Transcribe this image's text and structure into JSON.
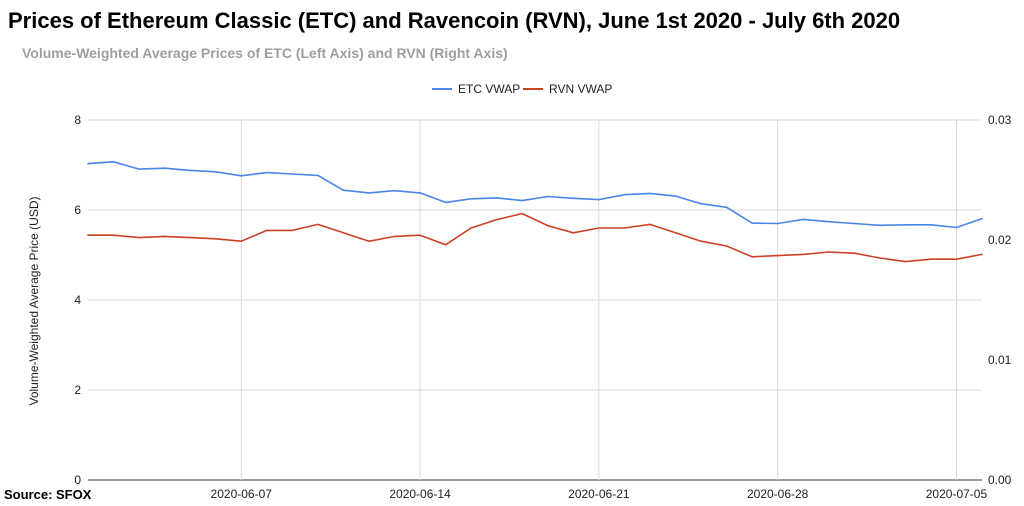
{
  "title": "Prices of Ethereum Classic (ETC) and Ravencoin (RVN), June 1st 2020 - July 6th 2020",
  "subtitle": "Volume-Weighted Average Prices of ETC (Left Axis) and RVN (Right Axis)",
  "source": "Source: SFOX",
  "colors": {
    "etc": "#4a86e8",
    "rvn": "#cc4125",
    "grid": "#d9d9d9"
  },
  "chart_data": {
    "type": "line",
    "ylabel": "Volume-Weighted Average Price (USD)",
    "legend_position": "top-center",
    "grid": true,
    "x_start": "2020-06-01",
    "x_end": "2020-07-06",
    "x": [
      "2020-06-01",
      "2020-06-02",
      "2020-06-03",
      "2020-06-04",
      "2020-06-05",
      "2020-06-06",
      "2020-06-07",
      "2020-06-08",
      "2020-06-09",
      "2020-06-10",
      "2020-06-11",
      "2020-06-12",
      "2020-06-13",
      "2020-06-14",
      "2020-06-15",
      "2020-06-16",
      "2020-06-17",
      "2020-06-18",
      "2020-06-19",
      "2020-06-20",
      "2020-06-21",
      "2020-06-22",
      "2020-06-23",
      "2020-06-24",
      "2020-06-25",
      "2020-06-26",
      "2020-06-27",
      "2020-06-28",
      "2020-06-29",
      "2020-06-30",
      "2020-07-01",
      "2020-07-02",
      "2020-07-03",
      "2020-07-04",
      "2020-07-05",
      "2020-07-06"
    ],
    "x_tick_labels": [
      "2020-06-07",
      "2020-06-14",
      "2020-06-21",
      "2020-06-28",
      "2020-07-05"
    ],
    "left_axis": {
      "ylim": [
        0,
        8
      ],
      "ticks": [
        "0",
        "2",
        "4",
        "6",
        "8"
      ]
    },
    "right_axis": {
      "ylim": [
        0,
        0.03
      ],
      "ticks": [
        "0.00",
        "0.01",
        "0.02",
        "0.03"
      ]
    },
    "series": [
      {
        "name": "ETC VWAP",
        "axis": "left",
        "values": [
          7.03,
          7.07,
          6.91,
          6.93,
          6.88,
          6.85,
          6.76,
          6.83,
          6.8,
          6.77,
          6.44,
          6.38,
          6.43,
          6.38,
          6.17,
          6.25,
          6.27,
          6.21,
          6.3,
          6.26,
          6.23,
          6.34,
          6.37,
          6.31,
          6.14,
          6.06,
          5.71,
          5.7,
          5.79,
          5.74,
          5.7,
          5.66,
          5.67,
          5.67,
          5.61,
          5.81
        ]
      },
      {
        "name": "RVN VWAP",
        "axis": "right",
        "values": [
          0.0204,
          0.0204,
          0.0202,
          0.0203,
          0.0202,
          0.0201,
          0.0199,
          0.0208,
          0.0208,
          0.0213,
          0.0206,
          0.0199,
          0.0203,
          0.0204,
          0.0196,
          0.021,
          0.0217,
          0.0222,
          0.0212,
          0.0206,
          0.021,
          0.021,
          0.0213,
          0.0206,
          0.0199,
          0.0195,
          0.0186,
          0.0187,
          0.0188,
          0.019,
          0.0189,
          0.0185,
          0.0182,
          0.0184,
          0.0184,
          0.0188
        ]
      }
    ]
  }
}
